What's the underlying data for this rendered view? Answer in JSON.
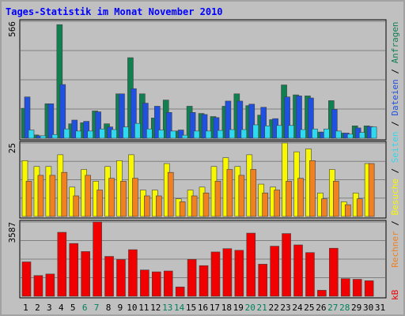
{
  "chart_data": {
    "type": "bar",
    "title": "Tages-Statistik im Monat November 2010",
    "x": [
      "1",
      "2",
      "3",
      "4",
      "5",
      "6",
      "7",
      "8",
      "9",
      "10",
      "11",
      "12",
      "13",
      "14",
      "15",
      "16",
      "17",
      "18",
      "19",
      "20",
      "21",
      "22",
      "23",
      "24",
      "25",
      "26",
      "27",
      "28",
      "29",
      "30",
      "31"
    ],
    "weekend_days": [
      "6",
      "7",
      "13",
      "14",
      "20",
      "21",
      "27",
      "28"
    ],
    "panels": [
      {
        "name": "top",
        "max_label": "566",
        "ymax": 566,
        "series": [
          {
            "name": "Anfragen",
            "color": "#108050",
            "values": [
              145,
              16,
              167,
              550,
              70,
              75,
              132,
              70,
              215,
              390,
              215,
              98,
              185,
              35,
              155,
              120,
              105,
              155,
              215,
              158,
              112,
              90,
              258,
              210,
              205,
              30,
              182,
              25,
              60,
              60,
              null
            ]
          },
          {
            "name": "Dateien",
            "color": "#2050e0",
            "values": [
              200,
              12,
              167,
              260,
              88,
              82,
              128,
              55,
              215,
              240,
              170,
              155,
              125,
              40,
              125,
              115,
              100,
              180,
              180,
              165,
              150,
              95,
              200,
              205,
              195,
              30,
              140,
              25,
              50,
              57,
              null
            ]
          },
          {
            "name": "Seiten",
            "color": "#30d8f0",
            "values": [
              40,
              12,
              18,
              45,
              35,
              35,
              45,
              42,
              55,
              72,
              45,
              40,
              35,
              15,
              35,
              35,
              38,
              42,
              42,
              65,
              60,
              62,
              62,
              42,
              45,
              45,
              35,
              20,
              28,
              55,
              null
            ]
          }
        ]
      },
      {
        "name": "mid",
        "max_label": "25",
        "ymax": 25,
        "series": [
          {
            "name": "Besuche",
            "color": "#f8f800",
            "values": [
              19,
              17,
              17,
              21,
              10,
              16,
              12,
              17,
              19,
              21,
              9,
              9,
              18,
              6,
              9,
              10,
              17,
              20,
              17,
              21,
              11,
              10,
              25,
              22,
              23,
              8,
              16,
              5,
              8,
              18,
              null
            ]
          },
          {
            "name": "Rechner",
            "color": "#f08020",
            "values": [
              12,
              14,
              14,
              15,
              7,
              14,
              9,
              13,
              12,
              13,
              7,
              7,
              15,
              5,
              7,
              8,
              12,
              16,
              14,
              16,
              8,
              9,
              12,
              13,
              19,
              6,
              12,
              4,
              6,
              18,
              null
            ]
          }
        ]
      },
      {
        "name": "bot",
        "max_label": "3587",
        "ymax": 3587,
        "series": [
          {
            "name": "kB",
            "color": "#f00000",
            "values": [
              1660,
              1000,
              1075,
              3090,
              2550,
              2160,
              3587,
              1925,
              1775,
              2250,
              1270,
              1180,
              1220,
              450,
              1780,
              1480,
              2140,
              2300,
              2220,
              3050,
              1550,
              2420,
              3030,
              2480,
              2110,
              290,
              2320,
              850,
              820,
              750,
              null
            ]
          }
        ]
      }
    ],
    "legend_right": [
      {
        "text": "kB",
        "color": "#f00000"
      },
      {
        "text": "Rechner",
        "color": "#f08020"
      },
      {
        "text": " / ",
        "color": "#000000"
      },
      {
        "text": "Besuche",
        "color": "#f8f800"
      },
      {
        "text": " / ",
        "color": "#000000"
      },
      {
        "text": "Seiten",
        "color": "#30d8f0"
      },
      {
        "text": " / ",
        "color": "#000000"
      },
      {
        "text": "Dateien",
        "color": "#2050e0"
      },
      {
        "text": " / ",
        "color": "#000000"
      },
      {
        "text": "Anfragen",
        "color": "#108050"
      }
    ],
    "colors": {
      "background": "#c0c0c0",
      "border": "#a2a2a2",
      "title": "#0000ff",
      "weekday": "#000000",
      "weekend": "#00805c",
      "panel_edge": "#000000",
      "gridline": "#808080"
    }
  }
}
